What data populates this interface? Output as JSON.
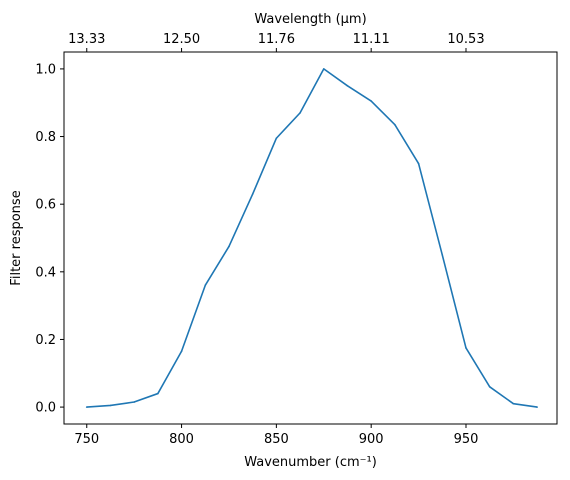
{
  "chart_data": {
    "type": "line",
    "xlabel": "Wavenumber (cm⁻¹)",
    "ylabel": "Filter response",
    "top_xlabel": "Wavelength (μm)",
    "xlim": [
      738,
      998
    ],
    "ylim": [
      -0.05,
      1.05
    ],
    "xticks": [
      750,
      800,
      850,
      900,
      950
    ],
    "xtick_labels": [
      "750",
      "800",
      "850",
      "900",
      "950"
    ],
    "yticks": [
      0.0,
      0.2,
      0.4,
      0.6,
      0.8,
      1.0
    ],
    "ytick_labels": [
      "0.0",
      "0.2",
      "0.4",
      "0.6",
      "0.8",
      "1.0"
    ],
    "top_xticks": [
      750,
      800,
      850,
      900,
      950
    ],
    "top_xtick_labels": [
      "13.33",
      "12.50",
      "11.76",
      "11.11",
      "10.53"
    ],
    "grid": false,
    "color": "#1f77b4",
    "series": [
      {
        "x": [
          750,
          762.5,
          775,
          787.5,
          800,
          812.5,
          825,
          837.5,
          850,
          862.5,
          875,
          887.5,
          900,
          912.5,
          925,
          937.5,
          950,
          962.5,
          975,
          987.5
        ],
        "y": [
          0.0,
          0.005,
          0.015,
          0.04,
          0.165,
          0.36,
          0.475,
          0.63,
          0.795,
          0.87,
          1.0,
          0.95,
          0.905,
          0.835,
          0.72,
          0.45,
          0.175,
          0.06,
          0.01,
          0.0
        ]
      }
    ]
  }
}
